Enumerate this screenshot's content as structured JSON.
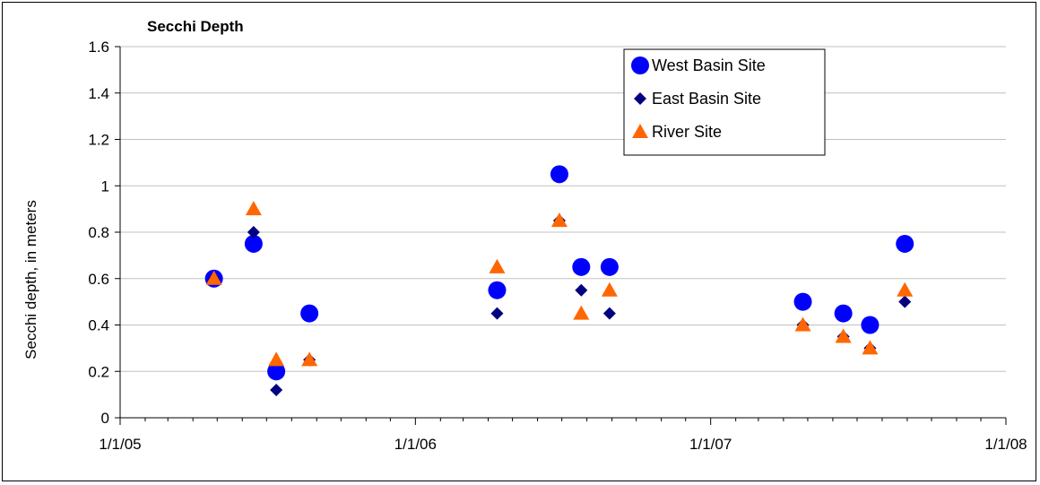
{
  "chart_data": {
    "type": "scatter",
    "title": "Secchi Depth",
    "xlabel": "",
    "ylabel": "Secchi depth, in meters",
    "xlim": [
      "2005-01-01",
      "2008-01-01"
    ],
    "ylim": [
      0,
      1.6
    ],
    "y_ticks": [
      "0",
      "0.2",
      "0.4",
      "0.6",
      "0.8",
      "1",
      "1.2",
      "1.4",
      "1.6"
    ],
    "x_ticks": [
      {
        "date": "2005-01-01",
        "label": "1/1/05"
      },
      {
        "date": "2006-01-01",
        "label": "1/1/06"
      },
      {
        "date": "2007-01-01",
        "label": "1/1/07"
      },
      {
        "date": "2008-01-01",
        "label": "1/1/08"
      }
    ],
    "grid": true,
    "legend_position": "top-right",
    "series": [
      {
        "name": "West Basin Site",
        "marker": "circle",
        "color": "#0000FF",
        "points": [
          {
            "x": "2005-04-27",
            "y": 0.6
          },
          {
            "x": "2005-06-15",
            "y": 0.75
          },
          {
            "x": "2005-07-13",
            "y": 0.2
          },
          {
            "x": "2005-08-23",
            "y": 0.45
          },
          {
            "x": "2006-04-12",
            "y": 0.55
          },
          {
            "x": "2006-06-28",
            "y": 1.05
          },
          {
            "x": "2006-07-25",
            "y": 0.65
          },
          {
            "x": "2006-08-29",
            "y": 0.65
          },
          {
            "x": "2007-04-25",
            "y": 0.5
          },
          {
            "x": "2007-06-14",
            "y": 0.45
          },
          {
            "x": "2007-07-17",
            "y": 0.4
          },
          {
            "x": "2007-08-29",
            "y": 0.75
          }
        ]
      },
      {
        "name": "East Basin Site",
        "marker": "diamond",
        "color": "#000080",
        "points": [
          {
            "x": "2005-04-27",
            "y": 0.6
          },
          {
            "x": "2005-06-15",
            "y": 0.8
          },
          {
            "x": "2005-07-13",
            "y": 0.12
          },
          {
            "x": "2005-08-23",
            "y": 0.25
          },
          {
            "x": "2006-04-12",
            "y": 0.45
          },
          {
            "x": "2006-06-28",
            "y": 0.85
          },
          {
            "x": "2006-07-25",
            "y": 0.55
          },
          {
            "x": "2006-08-29",
            "y": 0.45
          },
          {
            "x": "2007-04-25",
            "y": 0.4
          },
          {
            "x": "2007-06-14",
            "y": 0.35
          },
          {
            "x": "2007-07-17",
            "y": 0.3
          },
          {
            "x": "2007-08-29",
            "y": 0.5
          }
        ]
      },
      {
        "name": "River Site",
        "marker": "triangle",
        "color": "#FF6600",
        "points": [
          {
            "x": "2005-04-27",
            "y": 0.6
          },
          {
            "x": "2005-06-15",
            "y": 0.9
          },
          {
            "x": "2005-07-13",
            "y": 0.25
          },
          {
            "x": "2005-08-23",
            "y": 0.25
          },
          {
            "x": "2006-04-12",
            "y": 0.65
          },
          {
            "x": "2006-06-28",
            "y": 0.85
          },
          {
            "x": "2006-07-25",
            "y": 0.45
          },
          {
            "x": "2006-08-29",
            "y": 0.55
          },
          {
            "x": "2007-04-25",
            "y": 0.4
          },
          {
            "x": "2007-06-14",
            "y": 0.35
          },
          {
            "x": "2007-07-17",
            "y": 0.3
          },
          {
            "x": "2007-08-29",
            "y": 0.55
          }
        ]
      }
    ]
  }
}
